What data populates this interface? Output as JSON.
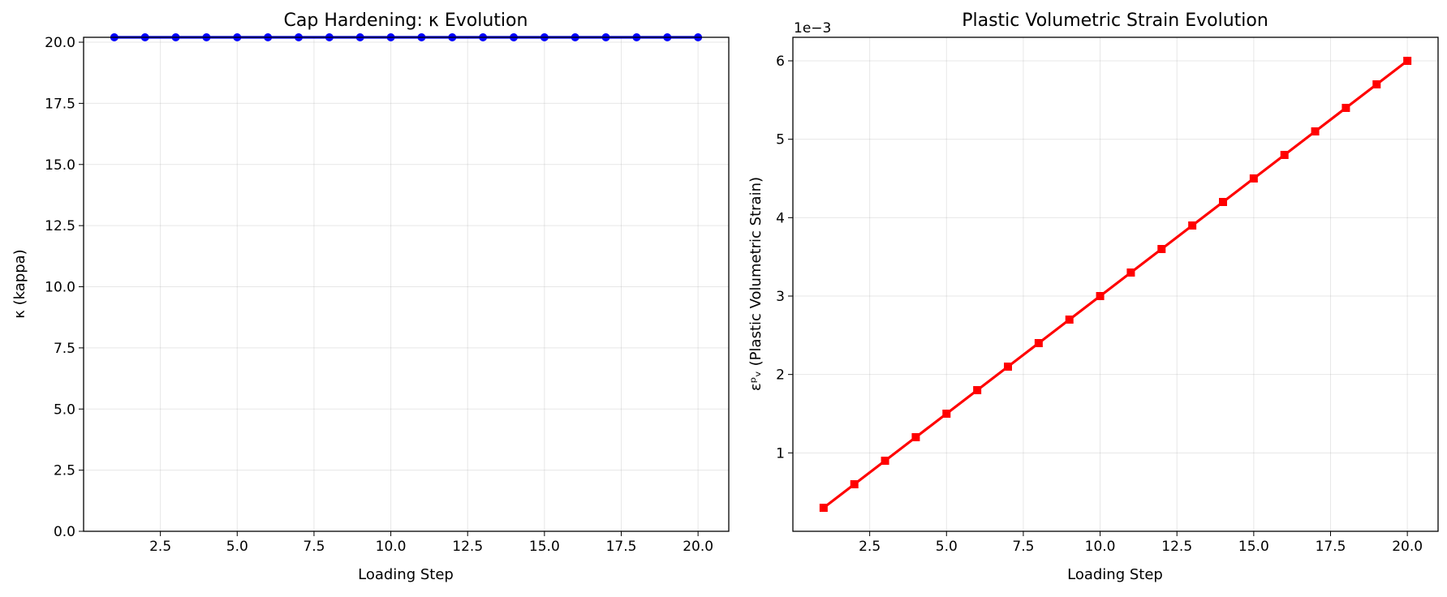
{
  "chart_data": [
    {
      "type": "line",
      "title": "Cap Hardening: κ Evolution",
      "xlabel": "Loading Step",
      "ylabel": "κ (kappa)",
      "xlim": [
        0,
        21
      ],
      "ylim": [
        0,
        20.2
      ],
      "xticks": [
        2.5,
        5.0,
        7.5,
        10.0,
        12.5,
        15.0,
        17.5,
        20.0
      ],
      "xtick_labels": [
        "2.5",
        "5.0",
        "7.5",
        "10.0",
        "12.5",
        "15.0",
        "17.5",
        "20.0"
      ],
      "yticks": [
        0,
        2.5,
        5.0,
        7.5,
        10.0,
        12.5,
        15.0,
        17.5,
        20.0
      ],
      "ytick_labels": [
        "0.0",
        "2.5",
        "5.0",
        "7.5",
        "10.0",
        "12.5",
        "15.0",
        "17.5",
        "20.0"
      ],
      "offset_text": "",
      "grid": true,
      "series": [
        {
          "color": "#0000ff",
          "marker": "circle",
          "x": [
            1,
            2,
            3,
            4,
            5,
            6,
            7,
            8,
            9,
            10,
            11,
            12,
            13,
            14,
            15,
            16,
            17,
            18,
            19,
            20
          ],
          "values": [
            20.2,
            20.2,
            20.2,
            20.2,
            20.2,
            20.2,
            20.2,
            20.2,
            20.2,
            20.2,
            20.2,
            20.2,
            20.2,
            20.2,
            20.2,
            20.2,
            20.2,
            20.2,
            20.2,
            20.2
          ]
        }
      ]
    },
    {
      "type": "line",
      "title": "Plastic Volumetric Strain Evolution",
      "xlabel": "Loading Step",
      "ylabel": "εᵖᵥ (Plastic Volumetric Strain)",
      "xlim": [
        0,
        21
      ],
      "ylim": [
        0,
        0.0063
      ],
      "xticks": [
        2.5,
        5.0,
        7.5,
        10.0,
        12.5,
        15.0,
        17.5,
        20.0
      ],
      "xtick_labels": [
        "2.5",
        "5.0",
        "7.5",
        "10.0",
        "12.5",
        "15.0",
        "17.5",
        "20.0"
      ],
      "yticks": [
        0.001,
        0.002,
        0.003,
        0.004,
        0.005,
        0.006
      ],
      "ytick_labels": [
        "1",
        "2",
        "3",
        "4",
        "5",
        "6"
      ],
      "offset_text": "1e−3",
      "grid": true,
      "series": [
        {
          "color": "#ff0000",
          "marker": "square",
          "x": [
            1,
            2,
            3,
            4,
            5,
            6,
            7,
            8,
            9,
            10,
            11,
            12,
            13,
            14,
            15,
            16,
            17,
            18,
            19,
            20
          ],
          "values": [
            0.0003,
            0.0006,
            0.0009,
            0.0012,
            0.0015,
            0.0018,
            0.0021,
            0.0024,
            0.0027,
            0.003,
            0.0033,
            0.0036,
            0.0039,
            0.0042,
            0.0045,
            0.0048,
            0.0051,
            0.0054,
            0.0057,
            0.006
          ]
        }
      ]
    }
  ]
}
